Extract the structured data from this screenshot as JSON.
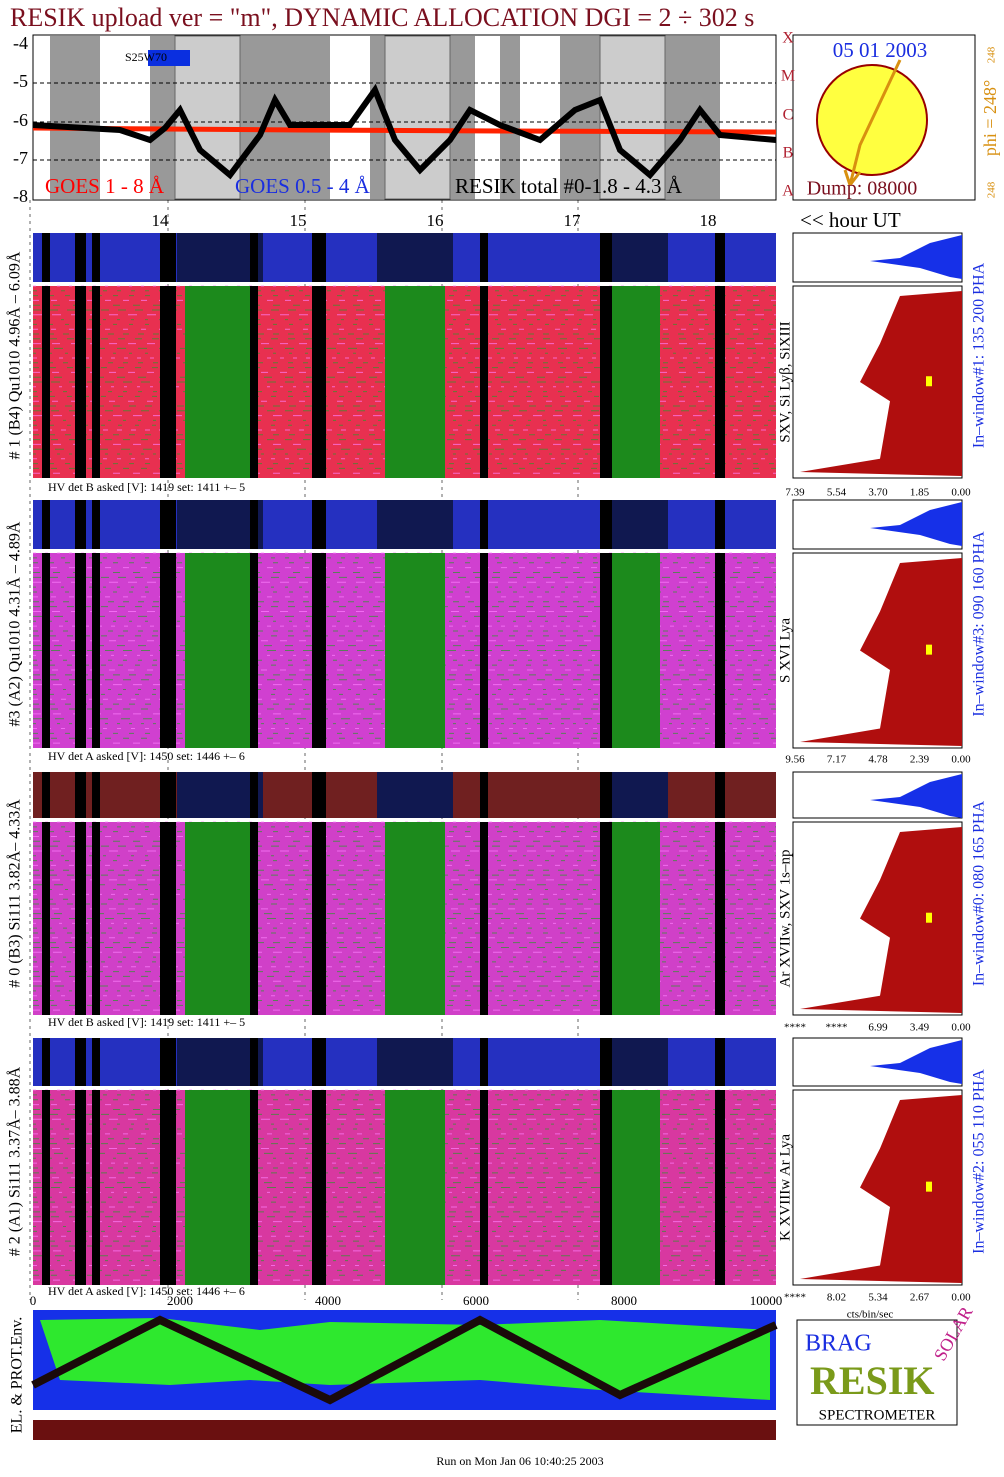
{
  "header": {
    "title": "RESIK upload ver = \"m\", DYNAMIC ALLOCATION  DGI =   2 ÷ 302 s"
  },
  "goes": {
    "yticks": [
      "-4",
      "-5",
      "-6",
      "-7",
      "-8"
    ],
    "classes": [
      "X",
      "M",
      "C",
      "B",
      "A"
    ],
    "legend": [
      "GOES 1 - 8 Å",
      "GOES 0.5 - 4 Å",
      "RESIK total #0-1.8 - 4.3 Å"
    ],
    "marker": "S25W70"
  },
  "sun": {
    "date": "05 01 2003",
    "dump": "Dump: 08000",
    "phi": "phi = 248°",
    "phi_top": "248",
    "phi_bottom": "248"
  },
  "hours": {
    "ticks": [
      "14",
      "15",
      "16",
      "17",
      "18"
    ],
    "label": "<< hour UT"
  },
  "panels": [
    {
      "label": "# 1 (B4) Qu1010 4.96Å – 6.09Å",
      "lines": "SXV, Si Lyβ, SiXIII",
      "window": "In–window#1:  135 200 PHA",
      "hv": "HV det B asked [V]:  1419 set:  1411  +–   5",
      "pha_ticks": [
        "7.39",
        "5.54",
        "3.70",
        "1.85",
        "0.00"
      ]
    },
    {
      "label": "#3 (A2) Qu1010  4.31Å – 4.89Å",
      "lines": "S XVI Lya",
      "window": "In–window#3:  090 160 PHA",
      "hv": "HV det A asked [V]:  1450 set:  1446  +–   6",
      "pha_ticks": [
        "9.56",
        "7.17",
        "4.78",
        "2.39",
        "0.00"
      ]
    },
    {
      "label": "# 0 (B3) Si111  3.82Å– 4.33Å",
      "lines": "Ar XVIIw,  SXV  1s–np",
      "window": "In–window#0:  080 165 PHA",
      "hv": "HV det B asked [V]:  1419 set:  1411  +–   5",
      "pha_ticks": [
        "****",
        "****",
        "6.99",
        "3.49",
        "0.00"
      ]
    },
    {
      "label": "# 2 (A1) Si111  3.37Å– 3.88Å",
      "lines": "K XVIIIw  Ar Lya",
      "window": "In–window#2:  055 110 PHA",
      "hv": "HV det A asked [V]:  1450 set:  1446  +–   6",
      "pha_ticks": [
        "****",
        "8.02",
        "5.34",
        "2.67",
        "0.00"
      ]
    }
  ],
  "bottom": {
    "xticks": [
      "0",
      "2000",
      "4000",
      "6000",
      "8000",
      "10000"
    ],
    "unit": "cts/bin/sec",
    "env": "EL. & PROT.Env."
  },
  "logo": {
    "top": "BRAG",
    "middle": "RESIK",
    "side": "SOLAR",
    "bottom": "SPECTROMETER"
  },
  "footer": "Run on Mon Jan 06 10:40:25 2003"
}
